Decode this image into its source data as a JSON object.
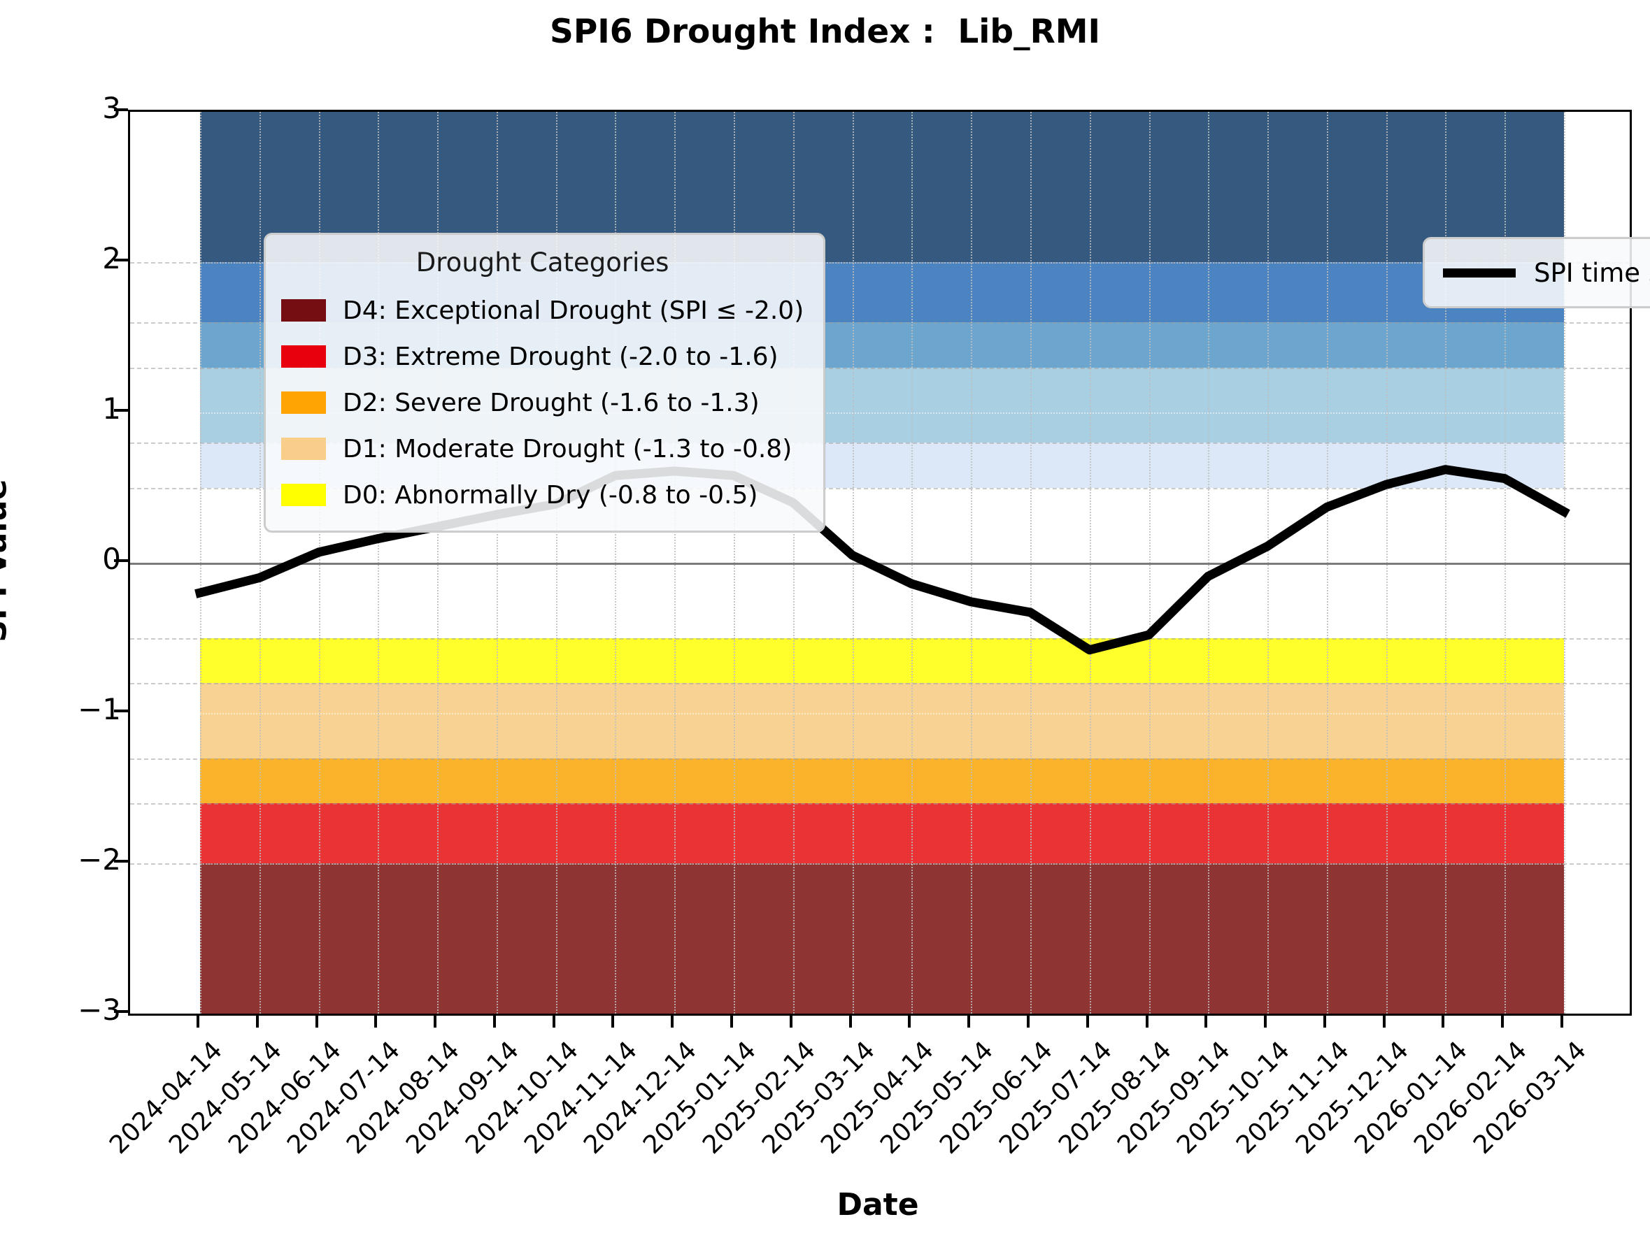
{
  "title": "SPI6 Drought Index :  Lib_RMI",
  "axes": {
    "xlabel": "Date",
    "ylabel": "SPI Value",
    "ylim": [
      -3,
      3
    ],
    "ytick_values": [
      3,
      2,
      1,
      0,
      -1,
      -2,
      -3
    ],
    "ytick_labels": [
      "3",
      "2",
      "1",
      "0",
      "−1",
      "−2",
      "−3"
    ]
  },
  "legend_drought": {
    "title": "Drought Categories",
    "items": [
      {
        "label": "D4: Exceptional Drought (SPI ≤ -2.0)",
        "color": "#740E12"
      },
      {
        "label": "D3: Extreme Drought (-2.0 to -1.6)",
        "color": "#E8000D"
      },
      {
        "label": "D2: Severe Drought (-1.6 to -1.3)",
        "color": "#FFA402"
      },
      {
        "label": "D1: Moderate Drought (-1.3 to -0.8)",
        "color": "#F9CE8B"
      },
      {
        "label": "D0: Abnormally Dry (-0.8 to -0.5)",
        "color": "#FFFF00"
      }
    ]
  },
  "legend_series": {
    "label": "SPI time series",
    "line_color": "#000000"
  },
  "chart_data": {
    "type": "line",
    "title": "SPI6 Drought Index :  Lib_RMI",
    "xlabel": "Date",
    "ylabel": "SPI Value",
    "ylim": [
      -3,
      3
    ],
    "grid": true,
    "x": [
      "2024-04-14",
      "2024-05-14",
      "2024-06-14",
      "2024-07-14",
      "2024-08-14",
      "2024-09-14",
      "2024-10-14",
      "2024-11-14",
      "2024-12-14",
      "2025-01-14",
      "2025-02-14",
      "2025-03-14",
      "2025-04-14",
      "2025-05-14",
      "2025-06-14",
      "2025-07-14",
      "2025-08-14",
      "2025-09-14",
      "2025-10-14",
      "2025-11-14",
      "2025-12-14",
      "2026-01-14",
      "2026-02-14",
      "2026-03-14"
    ],
    "series": [
      {
        "name": "SPI time series",
        "color": "#000000",
        "values": [
          -0.2,
          -0.1,
          0.07,
          0.16,
          0.24,
          0.32,
          0.39,
          0.58,
          0.61,
          0.58,
          0.4,
          0.05,
          -0.14,
          -0.26,
          -0.33,
          -0.58,
          -0.48,
          -0.09,
          0.11,
          0.37,
          0.52,
          0.62,
          0.56,
          0.34
        ]
      }
    ],
    "bands": [
      {
        "name": "wet-exceptional",
        "from": 2.0,
        "to": 3.0,
        "color": "#36597F"
      },
      {
        "name": "wet-extreme",
        "from": 1.6,
        "to": 2.0,
        "color": "#4C83C1"
      },
      {
        "name": "wet-severe",
        "from": 1.3,
        "to": 1.6,
        "color": "#6CA6CE"
      },
      {
        "name": "wet-moderate",
        "from": 0.8,
        "to": 1.3,
        "color": "#A9CFE3"
      },
      {
        "name": "wet-abnormal",
        "from": 0.5,
        "to": 0.8,
        "color": "#DCE8F8"
      },
      {
        "name": "D0-abnormally-dry",
        "from": -0.8,
        "to": -0.5,
        "color": "#FFFF2B"
      },
      {
        "name": "D1-moderate-drought",
        "from": -1.3,
        "to": -0.8,
        "color": "#F7D292"
      },
      {
        "name": "D2-severe-drought",
        "from": -1.6,
        "to": -1.3,
        "color": "#FCB32C"
      },
      {
        "name": "D3-extreme-drought",
        "from": -2.0,
        "to": -1.6,
        "color": "#EA3335"
      },
      {
        "name": "D4-exceptional-drought",
        "from": -3.0,
        "to": -2.0,
        "color": "#8E3432"
      }
    ],
    "boundary_gridlines": [
      2.0,
      1.6,
      1.3,
      0.8,
      0.5,
      -0.5,
      -0.8,
      -1.3,
      -1.6,
      -2.0
    ],
    "integer_gridlines": [
      2,
      1,
      -1,
      -2
    ],
    "zero_line_color": "#7B7B7B"
  }
}
